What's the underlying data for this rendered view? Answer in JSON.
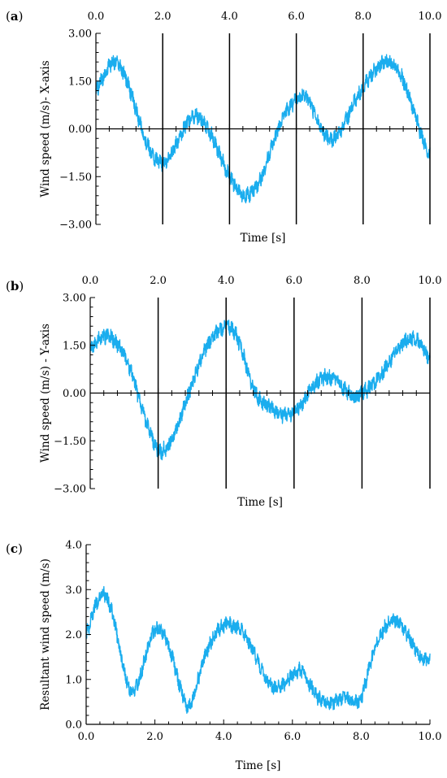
{
  "chart_data": [
    {
      "panel": "(a)",
      "panel_letter": "a",
      "type": "line",
      "xlabel": "Time [s]",
      "ylabel": "Wind speed (m/s)- X-axis",
      "xlim": [
        0,
        10
      ],
      "ylim": [
        -3,
        3
      ],
      "x_ticks": [
        "0.0",
        "2.0",
        "4.0",
        "6.0",
        "8.0",
        "10.0"
      ],
      "y_ticks": [
        "3.00",
        "1.50",
        "0.00",
        "−1.50",
        "−3.00"
      ],
      "x_tick_position": "top",
      "grid": "vertical lines at 2, 4, 6, 8, 10",
      "color": "#1AADEE",
      "series": [
        {
          "x": [
            0,
            0.25,
            0.5,
            0.75,
            1.0,
            1.25,
            1.5,
            1.75,
            2.0,
            2.25,
            2.5,
            2.75,
            3.0,
            3.25,
            3.5,
            3.75,
            4.0,
            4.25,
            4.5,
            4.75,
            5.0,
            5.25,
            5.5,
            5.75,
            6.0,
            6.25,
            6.5,
            6.75,
            7.0,
            7.25,
            7.5,
            7.75,
            8.0,
            8.25,
            8.5,
            8.75,
            9.0,
            9.25,
            9.5,
            9.75,
            10.0
          ],
          "values": [
            1.2,
            1.7,
            2.1,
            1.9,
            1.3,
            0.4,
            -0.4,
            -0.9,
            -1.1,
            -0.8,
            -0.3,
            0.2,
            0.4,
            0.2,
            -0.3,
            -0.9,
            -1.5,
            -1.9,
            -2.1,
            -1.9,
            -1.4,
            -0.6,
            0.1,
            0.6,
            0.9,
            1.0,
            0.6,
            0.0,
            -0.3,
            -0.2,
            0.3,
            0.9,
            1.3,
            1.7,
            2.0,
            2.1,
            1.9,
            1.4,
            0.6,
            -0.2,
            -0.8
          ]
        }
      ]
    },
    {
      "panel": "(b)",
      "panel_letter": "b",
      "type": "line",
      "xlabel": "Time [s]",
      "ylabel": "Wind speed (m/s) - Y-axis",
      "xlim": [
        0,
        10
      ],
      "ylim": [
        -3,
        3
      ],
      "x_ticks": [
        "0.0",
        "2.0",
        "4.0",
        "6.0",
        "8.0",
        "10.0"
      ],
      "y_ticks": [
        "3.00",
        "1.50",
        "0.00",
        "−1.50",
        "−3.00"
      ],
      "x_tick_position": "top",
      "grid": "vertical lines at 2, 4, 6, 8, 10",
      "color": "#1AADEE",
      "series": [
        {
          "x": [
            0,
            0.25,
            0.5,
            0.75,
            1.0,
            1.25,
            1.5,
            1.75,
            2.0,
            2.25,
            2.5,
            2.75,
            3.0,
            3.25,
            3.5,
            3.75,
            4.0,
            4.25,
            4.5,
            4.75,
            5.0,
            5.25,
            5.5,
            5.75,
            6.0,
            6.25,
            6.5,
            6.75,
            7.0,
            7.25,
            7.5,
            7.75,
            8.0,
            8.25,
            8.5,
            8.75,
            9.0,
            9.25,
            9.5,
            9.75,
            10.0
          ],
          "values": [
            1.4,
            1.7,
            1.8,
            1.6,
            1.2,
            0.5,
            -0.4,
            -1.2,
            -1.8,
            -1.7,
            -1.2,
            -0.5,
            0.3,
            1.0,
            1.6,
            1.9,
            2.1,
            1.9,
            1.2,
            0.3,
            -0.2,
            -0.4,
            -0.6,
            -0.7,
            -0.6,
            -0.3,
            0.1,
            0.4,
            0.5,
            0.4,
            0.1,
            -0.1,
            0.0,
            0.2,
            0.5,
            0.9,
            1.3,
            1.6,
            1.7,
            1.5,
            1.1
          ]
        }
      ]
    },
    {
      "panel": "(c)",
      "panel_letter": "c",
      "type": "line",
      "xlabel": "Time [s]",
      "ylabel": "Resultant wind speed (m/s)",
      "xlim": [
        0,
        10
      ],
      "ylim": [
        0,
        4
      ],
      "x_ticks": [
        "0.0",
        "2.0",
        "4.0",
        "6.0",
        "8.0",
        "10.0"
      ],
      "y_ticks": [
        "4.0",
        "3.0",
        "2.0",
        "1.0",
        "0.0"
      ],
      "x_tick_position": "bottom",
      "grid": "off",
      "color": "#1AADEE",
      "series": [
        {
          "x": [
            0,
            0.25,
            0.5,
            0.75,
            1.0,
            1.25,
            1.5,
            1.75,
            2.0,
            2.25,
            2.5,
            2.75,
            3.0,
            3.25,
            3.5,
            3.75,
            4.0,
            4.25,
            4.5,
            4.75,
            5.0,
            5.25,
            5.5,
            5.75,
            6.0,
            6.25,
            6.5,
            6.75,
            7.0,
            7.25,
            7.5,
            7.75,
            8.0,
            8.25,
            8.5,
            8.75,
            9.0,
            9.25,
            9.5,
            9.75,
            10.0
          ],
          "values": [
            2.0,
            2.6,
            2.9,
            2.5,
            1.6,
            0.8,
            0.9,
            1.6,
            2.1,
            2.0,
            1.5,
            0.8,
            0.4,
            1.0,
            1.6,
            2.0,
            2.2,
            2.2,
            2.1,
            1.8,
            1.4,
            1.0,
            0.8,
            0.9,
            1.1,
            1.2,
            0.9,
            0.6,
            0.5,
            0.5,
            0.6,
            0.5,
            0.6,
            1.3,
            1.9,
            2.2,
            2.3,
            2.1,
            1.8,
            1.5,
            1.4
          ]
        }
      ]
    }
  ]
}
